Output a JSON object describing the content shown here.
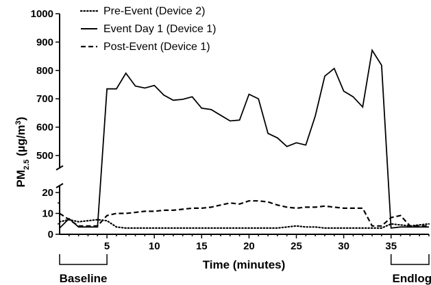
{
  "chart_data": {
    "type": "line",
    "xlabel": "Time (minutes)",
    "ylabel": {
      "main": "PM",
      "sub": "2.5",
      "unit": " (µg/m",
      "sup": "3",
      "close": ")"
    },
    "x_ticks": [
      5,
      10,
      15,
      20,
      25,
      30,
      35
    ],
    "y_ticks_upper": [
      500,
      600,
      700,
      800,
      900,
      1000
    ],
    "y_ticks_lower": [
      0,
      10,
      20
    ],
    "xlim": [
      0,
      39
    ],
    "ylim_lower": [
      0,
      25
    ],
    "ylim_upper": [
      450,
      1000
    ],
    "axis_break": true,
    "legend_position": "top-left",
    "series": [
      {
        "name": "Pre-Event (Device 2)",
        "style": "dotted",
        "x": [
          0,
          1,
          2,
          3,
          4,
          5,
          6,
          7,
          8,
          9,
          10,
          11,
          12,
          13,
          14,
          15,
          16,
          17,
          18,
          19,
          20,
          21,
          22,
          23,
          24,
          25,
          26,
          27,
          28,
          29,
          30,
          31,
          32,
          33,
          34,
          35,
          36,
          37,
          38,
          39
        ],
        "y": [
          6,
          7,
          6,
          6.5,
          7,
          6.5,
          3.5,
          3,
          3,
          3,
          3,
          3,
          3,
          3,
          3,
          3,
          3,
          3,
          3,
          3,
          3,
          3,
          3,
          3,
          3.5,
          4,
          3.5,
          3.5,
          3,
          3,
          3,
          3,
          3,
          3,
          3,
          5,
          4.5,
          4,
          4.5,
          5
        ]
      },
      {
        "name": "Event Day 1 (Device 1)",
        "style": "solid",
        "x": [
          0,
          1,
          2,
          3,
          4,
          5,
          6,
          7,
          8,
          9,
          10,
          11,
          12,
          13,
          14,
          15,
          16,
          17,
          18,
          19,
          20,
          21,
          22,
          23,
          24,
          25,
          26,
          27,
          28,
          29,
          30,
          31,
          32,
          33,
          34,
          35,
          36,
          37,
          38,
          39
        ],
        "y": [
          3,
          7.5,
          3.5,
          3.5,
          3.5,
          735,
          735,
          790,
          745,
          738,
          747,
          713,
          695,
          698,
          707,
          667,
          662,
          642,
          622,
          625,
          716,
          700,
          578,
          562,
          532,
          545,
          537,
          640,
          780,
          807,
          727,
          707,
          671,
          871,
          818,
          3,
          3.5,
          3.5,
          3.5,
          3.5
        ]
      },
      {
        "name": "Post-Event (Device 1)",
        "style": "dashed",
        "x": [
          0,
          1,
          2,
          3,
          4,
          5,
          6,
          7,
          8,
          9,
          10,
          11,
          12,
          13,
          14,
          15,
          16,
          17,
          18,
          19,
          20,
          21,
          22,
          23,
          24,
          25,
          26,
          27,
          28,
          29,
          30,
          31,
          32,
          33,
          34,
          35,
          36,
          37,
          38,
          39
        ],
        "y": [
          10,
          7,
          4,
          4,
          4,
          9,
          10,
          10,
          10.5,
          11,
          11,
          11.5,
          11.5,
          12,
          12.5,
          12.5,
          13,
          14,
          15,
          14.5,
          16,
          16,
          15.5,
          14,
          13,
          12.5,
          13,
          13,
          13.5,
          13,
          12.5,
          12.5,
          12.5,
          4,
          4,
          8,
          9,
          4,
          4,
          4
        ]
      }
    ],
    "brackets": [
      {
        "label": "Baseline",
        "from": 0,
        "to": 5
      },
      {
        "label": "Endlog",
        "from": 35,
        "to": 39
      }
    ]
  }
}
